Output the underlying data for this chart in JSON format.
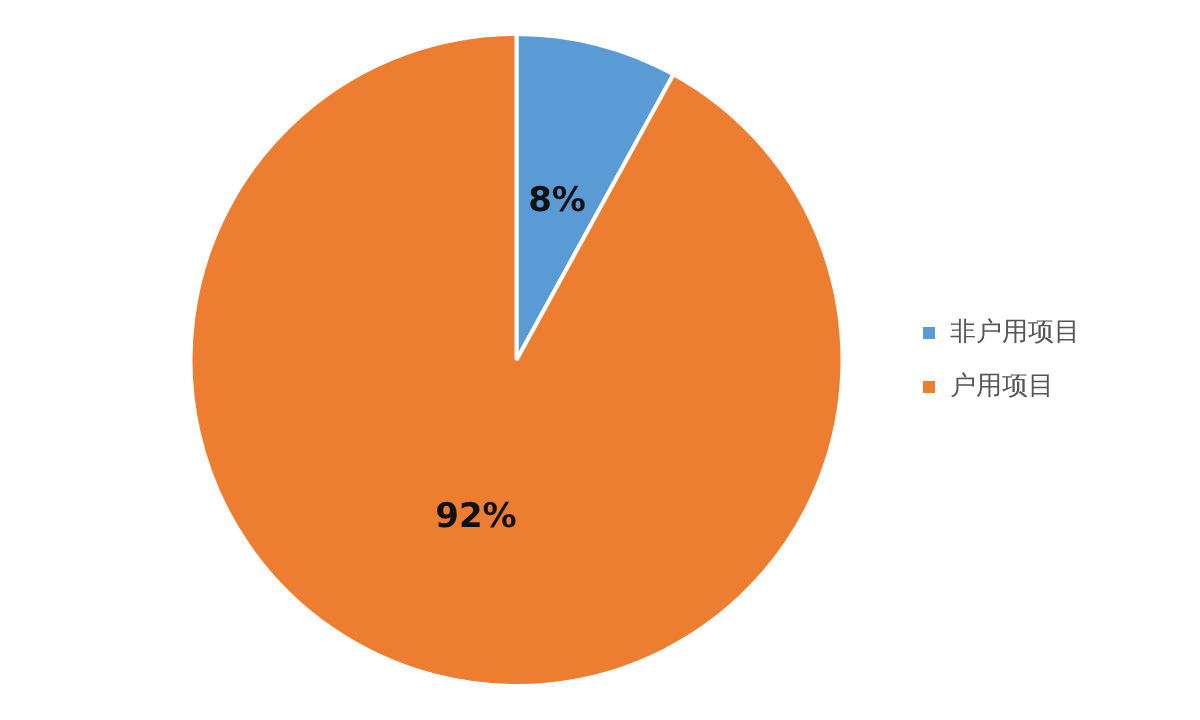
{
  "chart_data": {
    "type": "pie",
    "categories": [
      "非户用项目",
      "户用项目"
    ],
    "values": [
      8,
      92
    ],
    "colors": [
      "#5b9bd5",
      "#ed7d31"
    ],
    "value_labels": [
      "8%",
      "92%"
    ],
    "legend": "right"
  }
}
